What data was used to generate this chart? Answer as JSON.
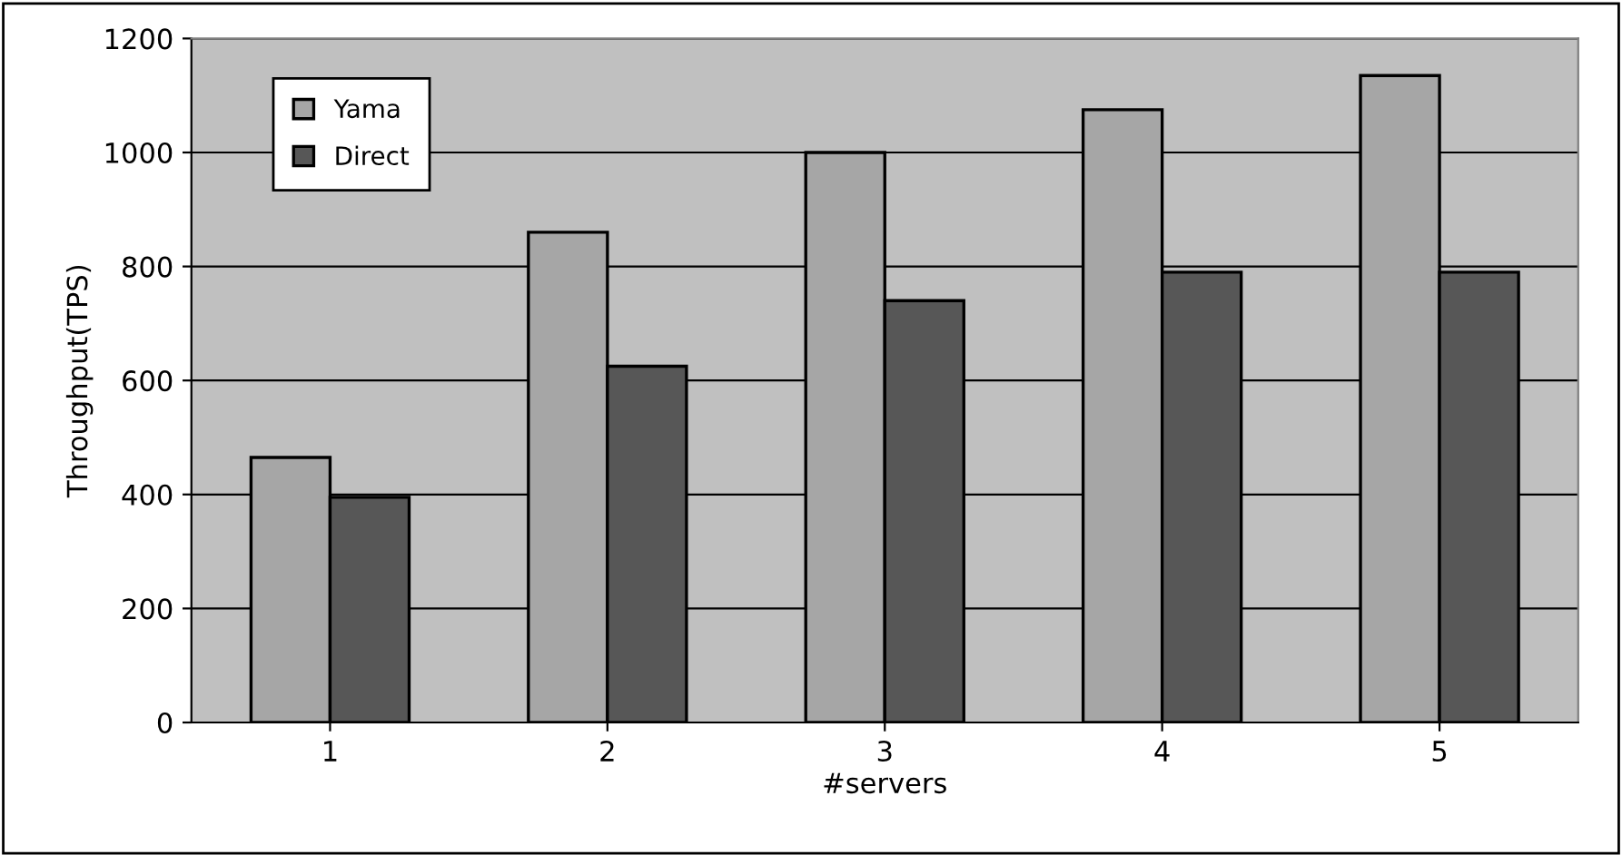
{
  "chart_data": {
    "type": "bar",
    "xlabel": "#servers",
    "ylabel": "Throughput(TPS)",
    "categories": [
      "1",
      "2",
      "3",
      "4",
      "5"
    ],
    "series": [
      {
        "name": "Yama",
        "color": "#a6a6a6",
        "values": [
          465,
          860,
          1000,
          1075,
          1135
        ]
      },
      {
        "name": "Direct",
        "color": "#575757",
        "values": [
          395,
          625,
          740,
          790,
          790
        ]
      }
    ],
    "ylim": [
      0,
      1200
    ],
    "yticks": [
      0,
      200,
      400,
      600,
      800,
      1000,
      1200
    ],
    "grid": "y",
    "legend": "top left"
  }
}
